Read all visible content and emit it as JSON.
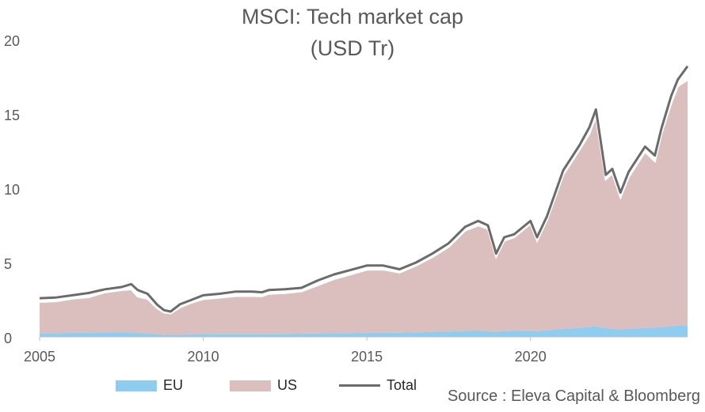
{
  "chart_data": {
    "type": "area",
    "title": "MSCI: Tech market cap",
    "subtitle": "(USD Tr)",
    "xlabel": "",
    "ylabel": "",
    "xlim": [
      2005,
      2024.8
    ],
    "ylim": [
      0,
      20
    ],
    "x_ticks": [
      "2005",
      "2010",
      "2015",
      "2020"
    ],
    "y_ticks": [
      "0",
      "5",
      "10",
      "15",
      "20"
    ],
    "grid": false,
    "legend_position": "bottom",
    "colors": {
      "EU": "#8fcdf0",
      "US": "#dbbfbf",
      "Total": "#6b6b6b",
      "separator": "#ffffff"
    },
    "x": [
      2005.0,
      2005.5,
      2006.0,
      2006.5,
      2007.0,
      2007.5,
      2007.8,
      2008.0,
      2008.3,
      2008.6,
      2008.8,
      2009.0,
      2009.3,
      2009.6,
      2010.0,
      2010.5,
      2011.0,
      2011.5,
      2011.8,
      2012.0,
      2012.5,
      2013.0,
      2013.5,
      2014.0,
      2014.5,
      2015.0,
      2015.5,
      2016.0,
      2016.5,
      2017.0,
      2017.5,
      2018.0,
      2018.4,
      2018.7,
      2018.95,
      2019.2,
      2019.5,
      2020.0,
      2020.2,
      2020.5,
      2021.0,
      2021.5,
      2021.8,
      2022.0,
      2022.3,
      2022.5,
      2022.75,
      2023.0,
      2023.5,
      2023.8,
      2024.0,
      2024.3,
      2024.5,
      2024.8
    ],
    "series": [
      {
        "name": "EU",
        "values": [
          0.25,
          0.25,
          0.28,
          0.28,
          0.3,
          0.3,
          0.3,
          0.27,
          0.22,
          0.17,
          0.15,
          0.13,
          0.15,
          0.17,
          0.2,
          0.2,
          0.2,
          0.2,
          0.19,
          0.2,
          0.2,
          0.22,
          0.23,
          0.25,
          0.26,
          0.27,
          0.28,
          0.28,
          0.3,
          0.33,
          0.36,
          0.4,
          0.4,
          0.37,
          0.35,
          0.38,
          0.4,
          0.42,
          0.38,
          0.45,
          0.55,
          0.6,
          0.68,
          0.7,
          0.6,
          0.55,
          0.5,
          0.55,
          0.6,
          0.62,
          0.65,
          0.72,
          0.76,
          0.8
        ]
      },
      {
        "name": "US",
        "values": [
          2.1,
          2.15,
          2.3,
          2.4,
          2.7,
          2.85,
          2.9,
          2.45,
          2.35,
          1.75,
          1.5,
          1.45,
          1.85,
          2.1,
          2.35,
          2.45,
          2.55,
          2.55,
          2.55,
          2.7,
          2.75,
          2.85,
          3.25,
          3.65,
          3.95,
          4.25,
          4.25,
          4.05,
          4.5,
          5.05,
          5.7,
          6.75,
          7.1,
          6.9,
          5.05,
          6.1,
          6.3,
          7.2,
          6.1,
          7.4,
          10.35,
          12.0,
          13.0,
          14.15,
          10.0,
          10.45,
          8.9,
          10.2,
          11.85,
          11.2,
          13.0,
          15.0,
          16.1,
          16.5
        ]
      },
      {
        "name": "Total",
        "values": [
          2.6,
          2.65,
          2.8,
          2.95,
          3.2,
          3.35,
          3.55,
          3.15,
          2.9,
          2.15,
          1.8,
          1.7,
          2.2,
          2.45,
          2.8,
          2.9,
          3.05,
          3.05,
          3.0,
          3.15,
          3.2,
          3.3,
          3.8,
          4.2,
          4.5,
          4.8,
          4.8,
          4.55,
          5.0,
          5.6,
          6.3,
          7.4,
          7.8,
          7.5,
          5.6,
          6.7,
          6.9,
          7.8,
          6.7,
          8.1,
          11.2,
          12.9,
          14.1,
          15.3,
          10.9,
          11.3,
          9.7,
          11.1,
          12.8,
          12.2,
          14.0,
          16.2,
          17.3,
          18.2
        ]
      }
    ]
  },
  "legend": {
    "eu_label": "EU",
    "us_label": "US",
    "total_label": "Total"
  },
  "source": "Source : Eleva Capital & Bloomberg"
}
